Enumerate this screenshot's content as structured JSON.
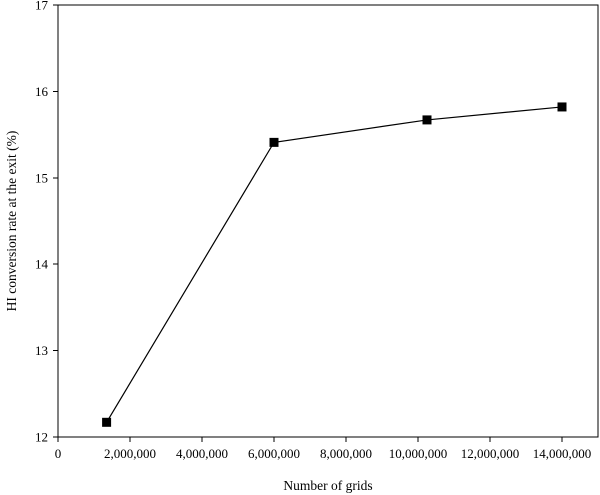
{
  "chart_data": {
    "type": "line",
    "xlabel": "Number of grids",
    "ylabel": "HI conversion rate at the exit (%)",
    "xlim": [
      0,
      15000000
    ],
    "ylim": [
      12,
      17
    ],
    "x_ticks": [
      0,
      2000000,
      4000000,
      6000000,
      8000000,
      10000000,
      12000000,
      14000000
    ],
    "x_tick_labels": [
      "0",
      "2,000,000",
      "4,000,000",
      "6,000,000",
      "8,000,000",
      "10,000,000",
      "12,000,000",
      "14,000,000"
    ],
    "y_ticks": [
      12,
      13,
      14,
      15,
      16,
      17
    ],
    "y_tick_labels": [
      "12",
      "13",
      "14",
      "15",
      "16",
      "17"
    ],
    "grid": false,
    "marker": "square",
    "series": [
      {
        "x": [
          1350000,
          6000000,
          10250000,
          14000000
        ],
        "y": [
          12.17,
          15.41,
          15.67,
          15.82
        ],
        "color": "#000000"
      }
    ]
  }
}
